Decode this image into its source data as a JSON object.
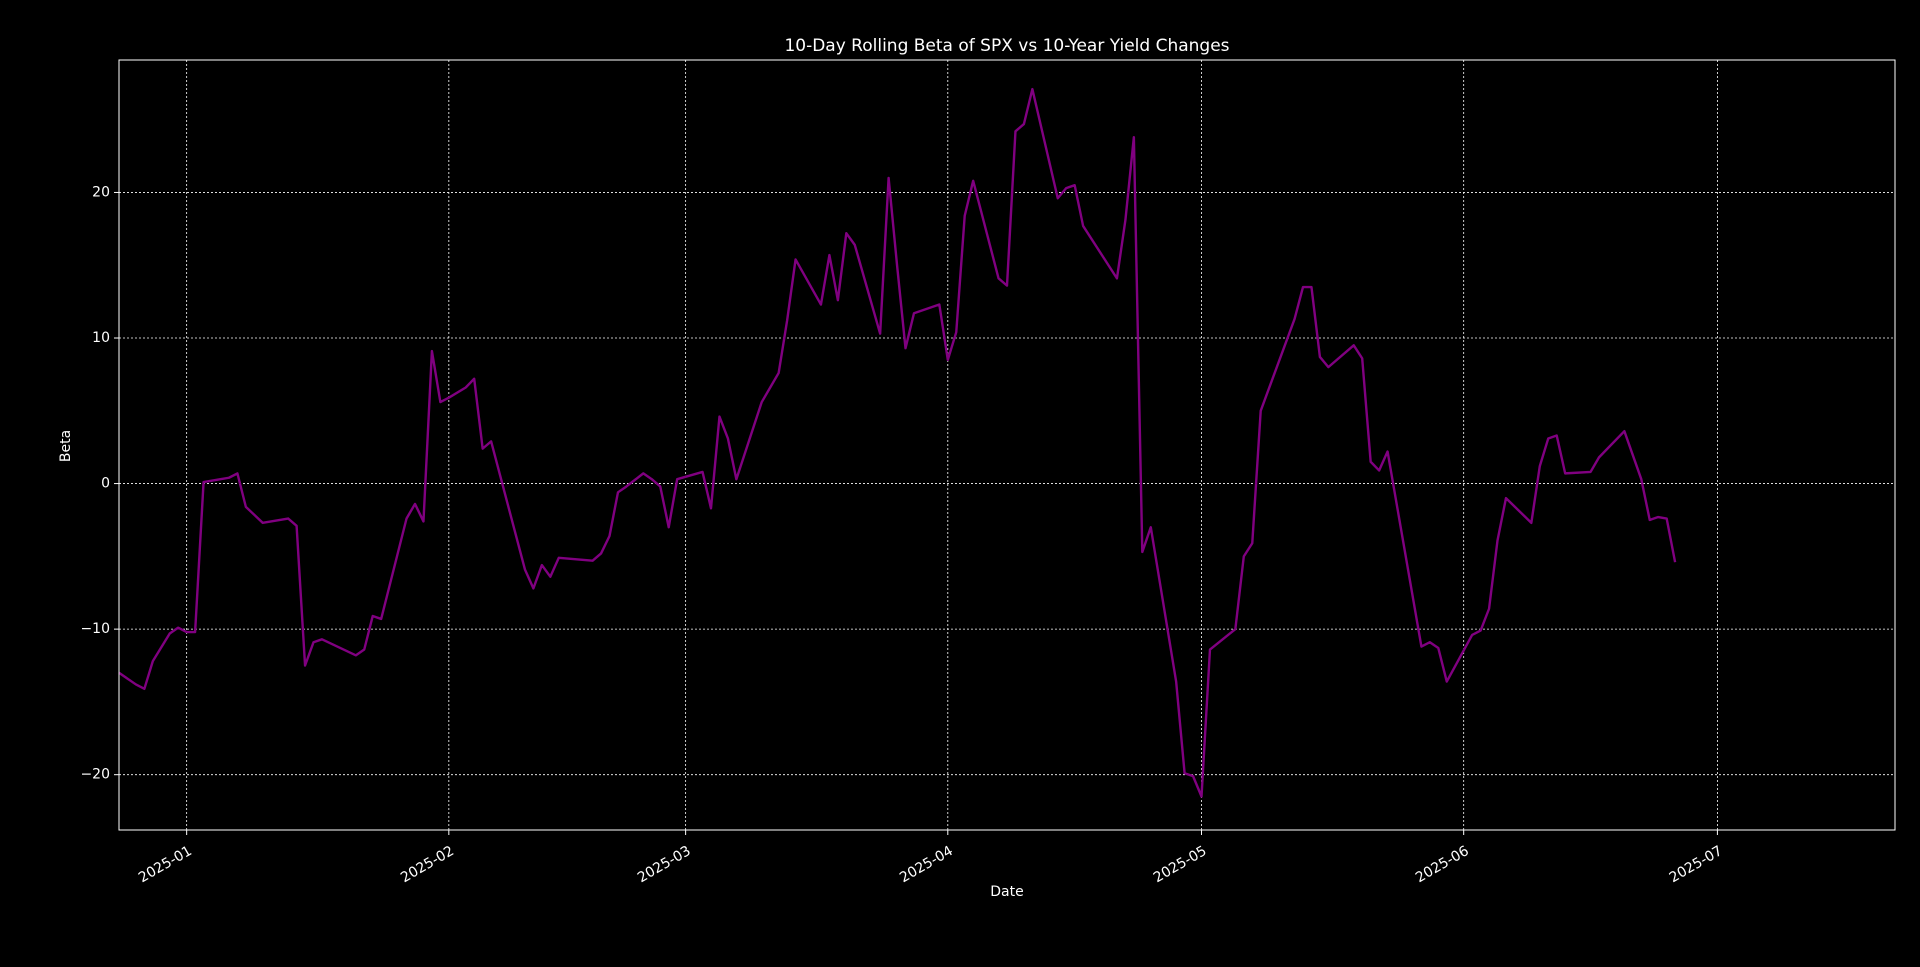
{
  "chart_data": {
    "type": "line",
    "title": "10-Day Rolling Beta of SPX vs 10-Year Yield Changes",
    "xlabel": "Date",
    "ylabel": "Beta",
    "color": "#800080",
    "grid": true,
    "x": [
      -8,
      -6,
      -5,
      -4,
      -2,
      -1,
      0,
      1,
      2,
      4,
      5,
      6,
      7,
      9,
      12,
      13,
      14,
      15,
      16,
      20,
      21,
      22,
      23,
      26,
      27,
      28,
      29,
      30,
      31,
      33,
      34,
      35,
      36,
      40,
      41,
      42,
      43,
      44,
      48,
      49,
      50,
      51,
      52,
      54,
      55,
      56,
      57,
      58,
      61,
      62,
      63,
      64,
      65,
      68,
      69,
      70,
      71,
      72,
      75,
      76,
      77,
      78,
      79,
      82,
      83,
      84,
      85,
      86,
      89,
      90,
      91,
      92,
      93,
      96,
      97,
      98,
      99,
      100,
      103,
      104,
      105,
      106,
      110,
      111,
      112,
      113,
      114,
      117,
      118,
      119,
      120,
      121,
      124,
      125,
      126,
      127,
      131,
      132,
      133,
      134,
      135,
      138,
      139,
      140,
      141,
      142,
      146,
      147,
      148,
      149,
      152,
      153,
      154,
      155,
      156,
      159,
      160,
      161,
      162,
      163,
      166,
      167,
      168,
      170,
      172,
      173,
      174,
      175,
      176
    ],
    "values": [
      -13.0,
      -13.8,
      -14.1,
      -12.2,
      -10.3,
      -9.9,
      -10.2,
      -10.2,
      0.1,
      0.3,
      0.4,
      0.7,
      -1.6,
      -2.7,
      -2.4,
      -2.9,
      -12.5,
      -10.9,
      -10.7,
      -11.8,
      -11.4,
      -9.1,
      -9.3,
      -2.4,
      -1.4,
      -2.6,
      9.1,
      5.6,
      5.9,
      6.6,
      7.2,
      2.4,
      2.9,
      -5.9,
      -7.2,
      -5.6,
      -6.4,
      -5.1,
      -5.3,
      -4.8,
      -3.6,
      -0.6,
      -0.2,
      0.7,
      0.3,
      -0.2,
      -3.0,
      0.3,
      0.8,
      -1.7,
      4.6,
      3.1,
      0.3,
      5.6,
      6.6,
      7.6,
      11.2,
      15.4,
      12.3,
      15.7,
      12.6,
      17.2,
      16.4,
      10.3,
      21.0,
      15.0,
      9.3,
      11.7,
      12.3,
      8.5,
      10.4,
      18.4,
      20.8,
      14.1,
      13.6,
      24.2,
      24.7,
      27.1,
      19.6,
      20.3,
      20.5,
      17.7,
      14.1,
      18.1,
      23.8,
      -4.7,
      -3.0,
      -13.6,
      -19.9,
      -20.1,
      -21.5,
      -11.4,
      -10.0,
      -5.0,
      -4.1,
      5.0,
      11.3,
      13.5,
      13.5,
      8.7,
      8.0,
      9.5,
      8.6,
      1.5,
      0.9,
      2.2,
      -11.2,
      -10.9,
      -11.3,
      -13.6,
      -10.4,
      -10.1,
      -8.6,
      -3.9,
      -1.0,
      -2.7,
      1.2,
      3.1,
      3.3,
      0.7,
      0.8,
      1.8,
      2.4,
      3.6,
      0.3,
      -2.5,
      -2.3,
      -2.4,
      -5.4
    ],
    "xlim": [
      -8,
      202
    ],
    "xticks": [
      {
        "value": 0,
        "label": "2025-01"
      },
      {
        "value": 31,
        "label": "2025-02"
      },
      {
        "value": 59,
        "label": "2025-03"
      },
      {
        "value": 90,
        "label": "2025-04"
      },
      {
        "value": 120,
        "label": "2025-05"
      },
      {
        "value": 151,
        "label": "2025-06"
      },
      {
        "value": 181,
        "label": "2025-07"
      }
    ],
    "ylim": [
      -23.8,
      29.1
    ],
    "yticks": [
      {
        "value": -20,
        "label": "−20"
      },
      {
        "value": -10,
        "label": "−10"
      },
      0,
      10,
      20
    ]
  }
}
